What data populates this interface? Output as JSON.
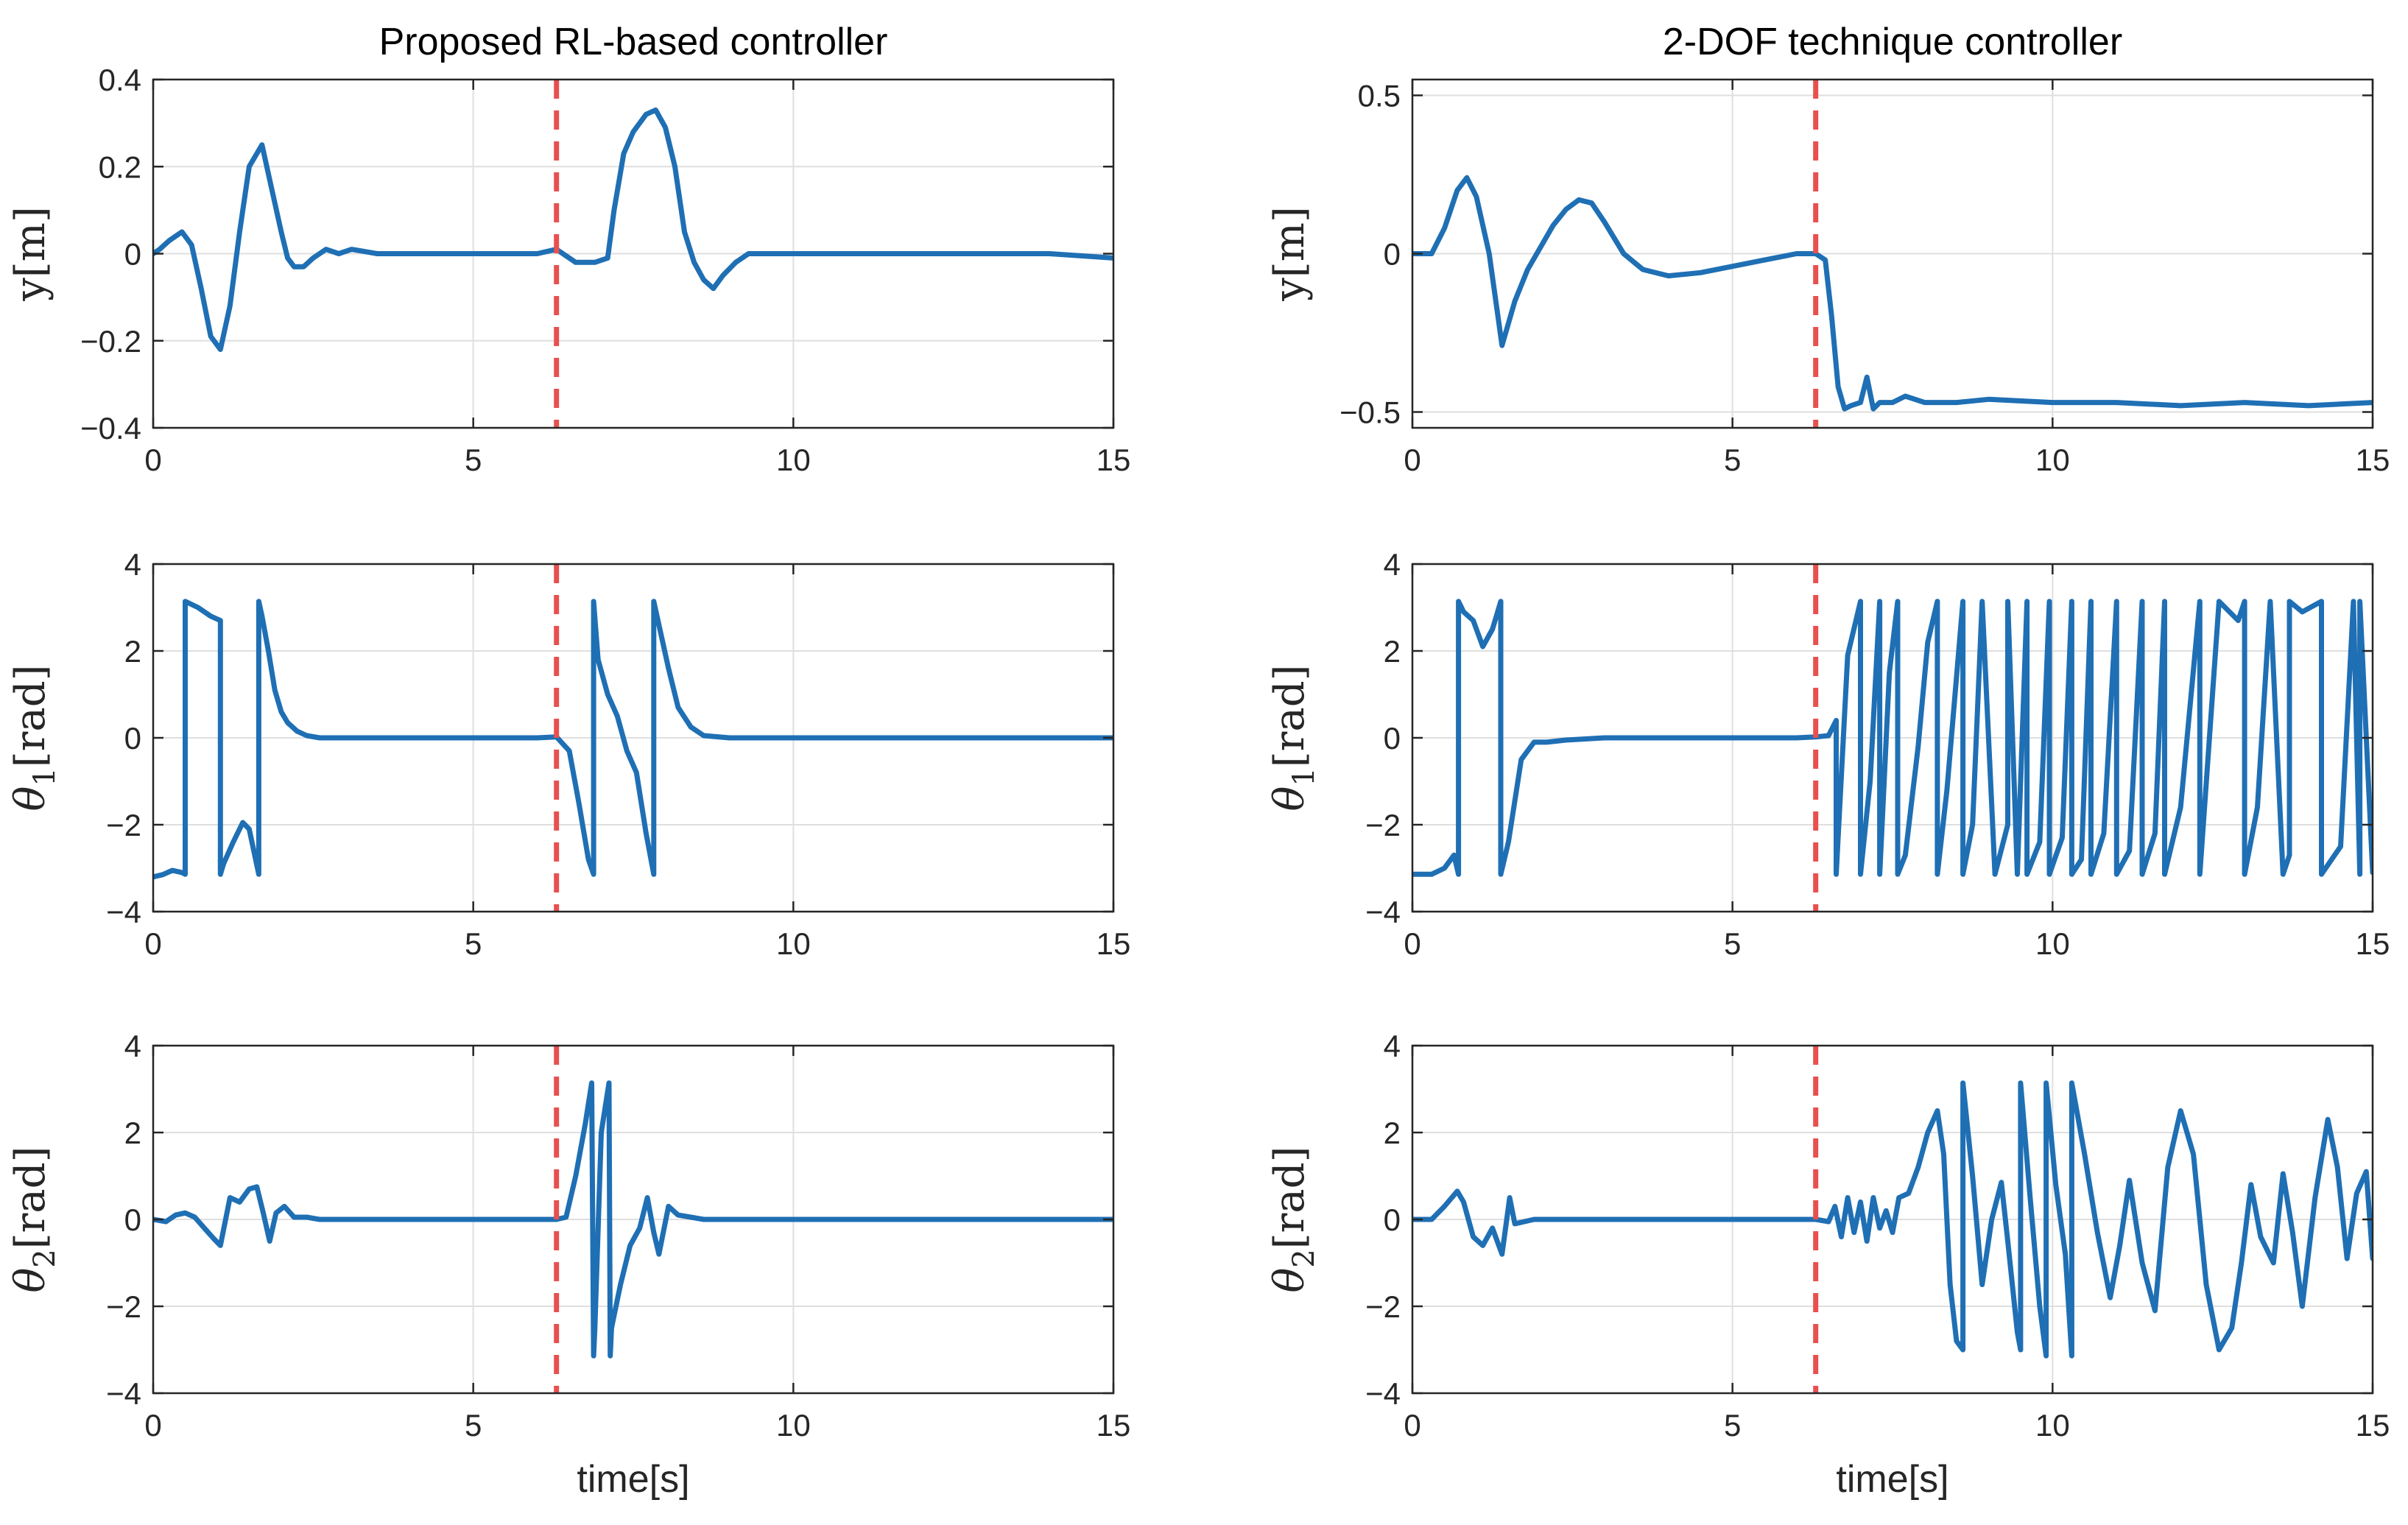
{
  "colors": {
    "series": "#1f6fb4",
    "marker": "#e8504f",
    "grid": "#dfdfdf",
    "axis": "#262626"
  },
  "chart_data": [
    {
      "type": "line",
      "id": "rl-y",
      "column": 0,
      "row": 0,
      "title": "Proposed RL-based controller",
      "xlabel": "",
      "ylabel": "y[m]",
      "ylabel_main": "y",
      "ylabel_sub": "",
      "ylabel_unit": "[m]",
      "xlim": [
        0,
        15
      ],
      "ylim": [
        -0.4,
        0.4
      ],
      "xticks": [
        0,
        5,
        10,
        15
      ],
      "xtick_labels": [
        "0",
        "5",
        "10",
        "15"
      ],
      "yticks": [
        0.4,
        0.2,
        0,
        -0.2,
        -0.4
      ],
      "ytick_labels": [
        "0.4",
        "0.2",
        "0",
        "−0.2",
        "−0.4"
      ],
      "grid": true,
      "vline_x": 6.3,
      "vline_style": "dashed red",
      "series": [
        {
          "name": "y",
          "x": [
            0,
            0.1,
            0.25,
            0.45,
            0.6,
            0.75,
            0.9,
            1.05,
            1.2,
            1.35,
            1.5,
            1.7,
            1.85,
            2.0,
            2.1,
            2.2,
            2.35,
            2.5,
            2.7,
            2.9,
            3.1,
            3.5,
            4.0,
            4.5,
            5.0,
            5.5,
            6.0,
            6.3,
            6.6,
            6.9,
            7.1,
            7.2,
            7.35,
            7.5,
            7.7,
            7.85,
            8.0,
            8.15,
            8.3,
            8.45,
            8.6,
            8.75,
            8.9,
            9.1,
            9.3,
            9.6,
            10.0,
            11.0,
            12.0,
            13.0,
            14.0,
            15.0
          ],
          "values": [
            0,
            0.01,
            0.03,
            0.05,
            0.02,
            -0.08,
            -0.19,
            -0.22,
            -0.12,
            0.05,
            0.2,
            0.25,
            0.15,
            0.05,
            -0.01,
            -0.03,
            -0.03,
            -0.01,
            0.01,
            0.0,
            0.01,
            0.0,
            0.0,
            0.0,
            0.0,
            0.0,
            0.0,
            0.01,
            -0.02,
            -0.02,
            -0.01,
            0.1,
            0.23,
            0.28,
            0.32,
            0.33,
            0.29,
            0.2,
            0.05,
            -0.02,
            -0.06,
            -0.08,
            -0.05,
            -0.02,
            0.0,
            0.0,
            0.0,
            0.0,
            0.0,
            0.0,
            0.0,
            -0.01
          ]
        }
      ]
    },
    {
      "type": "line",
      "id": "dof-y",
      "column": 1,
      "row": 0,
      "title": "2-DOF technique controller",
      "xlabel": "",
      "ylabel": "y[m]",
      "ylabel_main": "y",
      "ylabel_sub": "",
      "ylabel_unit": "[m]",
      "xlim": [
        0,
        15
      ],
      "ylim": [
        -0.55,
        0.55
      ],
      "xticks": [
        0,
        5,
        10,
        15
      ],
      "xtick_labels": [
        "0",
        "5",
        "10",
        "15"
      ],
      "yticks": [
        0.5,
        0,
        -0.5
      ],
      "ytick_labels": [
        "0.5",
        "0",
        "−0.5"
      ],
      "grid": true,
      "vline_x": 6.3,
      "vline_style": "dashed red",
      "series": [
        {
          "name": "y",
          "x": [
            0,
            0.3,
            0.5,
            0.7,
            0.85,
            1.0,
            1.2,
            1.4,
            1.6,
            1.8,
            2.0,
            2.2,
            2.4,
            2.6,
            2.8,
            3.0,
            3.3,
            3.6,
            4.0,
            4.5,
            5.0,
            5.5,
            6.0,
            6.3,
            6.45,
            6.55,
            6.65,
            6.75,
            6.85,
            7.0,
            7.1,
            7.2,
            7.3,
            7.5,
            7.7,
            8.0,
            8.5,
            9.0,
            10.0,
            11.0,
            12.0,
            13.0,
            14.0,
            15.0
          ],
          "values": [
            0,
            0.0,
            0.08,
            0.2,
            0.24,
            0.18,
            0.0,
            -0.29,
            -0.15,
            -0.05,
            0.02,
            0.09,
            0.14,
            0.17,
            0.16,
            0.1,
            0.0,
            -0.05,
            -0.07,
            -0.06,
            -0.04,
            -0.02,
            0.0,
            0.0,
            -0.02,
            -0.2,
            -0.42,
            -0.49,
            -0.48,
            -0.47,
            -0.39,
            -0.49,
            -0.47,
            -0.47,
            -0.45,
            -0.47,
            -0.47,
            -0.46,
            -0.47,
            -0.47,
            -0.48,
            -0.47,
            -0.48,
            -0.47
          ]
        }
      ]
    },
    {
      "type": "line",
      "id": "rl-theta1",
      "column": 0,
      "row": 1,
      "title": "",
      "xlabel": "",
      "ylabel": "θ1[rad]",
      "ylabel_main": "θ",
      "ylabel_sub": "1",
      "ylabel_unit": "[rad]",
      "xlim": [
        0,
        15
      ],
      "ylim": [
        -4,
        4
      ],
      "xticks": [
        0,
        5,
        10,
        15
      ],
      "xtick_labels": [
        "0",
        "5",
        "10",
        "15"
      ],
      "yticks": [
        4,
        2,
        0,
        -2,
        -4
      ],
      "ytick_labels": [
        "4",
        "2",
        "0",
        "−2",
        "−4"
      ],
      "grid": true,
      "vline_x": 6.3,
      "vline_style": "dashed red",
      "series": [
        {
          "name": "theta1",
          "x": [
            0,
            0.15,
            0.3,
            0.45,
            0.5,
            0.5,
            0.7,
            0.9,
            1.05,
            1.05,
            1.1,
            1.25,
            1.4,
            1.5,
            1.65,
            1.65,
            1.7,
            1.8,
            1.9,
            2.0,
            2.1,
            2.25,
            2.4,
            2.6,
            3.0,
            4.0,
            5.0,
            6.0,
            6.3,
            6.5,
            6.65,
            6.8,
            6.88,
            6.88,
            6.95,
            7.1,
            7.25,
            7.4,
            7.55,
            7.7,
            7.82,
            7.82,
            7.9,
            8.05,
            8.2,
            8.4,
            8.6,
            9.0,
            10.0,
            11.0,
            12.0,
            13.0,
            14.0,
            15.0
          ],
          "values": [
            -3.2,
            -3.15,
            -3.05,
            -3.1,
            -3.14,
            3.14,
            3.0,
            2.8,
            2.7,
            -3.14,
            -2.9,
            -2.4,
            -1.95,
            -2.1,
            -3.14,
            3.14,
            2.8,
            2.0,
            1.1,
            0.6,
            0.35,
            0.15,
            0.05,
            0.0,
            0.0,
            0.0,
            0.0,
            0.0,
            0.02,
            -0.3,
            -1.5,
            -2.8,
            -3.14,
            3.14,
            1.8,
            1.0,
            0.5,
            -0.3,
            -0.8,
            -2.2,
            -3.14,
            3.14,
            2.6,
            1.6,
            0.7,
            0.25,
            0.05,
            0.0,
            0.0,
            0.0,
            0.0,
            0.0,
            0.0,
            0.0
          ]
        }
      ]
    },
    {
      "type": "line",
      "id": "dof-theta1",
      "column": 1,
      "row": 1,
      "title": "",
      "xlabel": "",
      "ylabel": "θ1[rad]",
      "ylabel_main": "θ",
      "ylabel_sub": "1",
      "ylabel_unit": "[rad]",
      "xlim": [
        0,
        15
      ],
      "ylim": [
        -4,
        4
      ],
      "xticks": [
        0,
        5,
        10,
        15
      ],
      "xtick_labels": [
        "0",
        "5",
        "10",
        "15"
      ],
      "yticks": [
        4,
        2,
        0,
        -2,
        -4
      ],
      "ytick_labels": [
        "4",
        "2",
        "0",
        "−2",
        "−4"
      ],
      "grid": true,
      "vline_x": 6.3,
      "vline_style": "dashed red",
      "series": [
        {
          "name": "theta1",
          "x": [
            0,
            0.3,
            0.5,
            0.65,
            0.72,
            0.72,
            0.8,
            0.95,
            1.1,
            1.25,
            1.38,
            1.38,
            1.5,
            1.7,
            1.9,
            2.1,
            2.4,
            3.0,
            4.0,
            5.0,
            6.0,
            6.3,
            6.5,
            6.62,
            6.62,
            6.8,
            7.0,
            7.0,
            7.15,
            7.3,
            7.3,
            7.45,
            7.58,
            7.58,
            7.7,
            7.9,
            8.05,
            8.2,
            8.2,
            8.35,
            8.6,
            8.6,
            8.75,
            8.9,
            9.1,
            9.3,
            9.3,
            9.45,
            9.6,
            9.6,
            9.8,
            9.95,
            9.95,
            10.15,
            10.3,
            10.3,
            10.45,
            10.6,
            10.6,
            10.8,
            11.0,
            11.0,
            11.2,
            11.4,
            11.4,
            11.6,
            11.75,
            11.75,
            12.0,
            12.3,
            12.3,
            12.6,
            12.9,
            13.0,
            13.0,
            13.2,
            13.4,
            13.6,
            13.7,
            13.7,
            13.9,
            14.2,
            14.2,
            14.5,
            14.7,
            14.8,
            14.8,
            15.0
          ],
          "values": [
            -3.14,
            -3.14,
            -3.0,
            -2.7,
            -3.14,
            3.14,
            2.9,
            2.7,
            2.1,
            2.5,
            3.14,
            -3.14,
            -2.4,
            -0.5,
            -0.1,
            -0.1,
            -0.05,
            0.0,
            0.0,
            0.0,
            0.0,
            0.02,
            0.05,
            0.4,
            -3.14,
            1.9,
            3.14,
            -3.14,
            -1.0,
            3.14,
            -3.14,
            1.5,
            3.14,
            -3.14,
            -2.7,
            -0.2,
            2.2,
            3.14,
            -3.14,
            -1.2,
            3.14,
            -3.14,
            -2.0,
            3.14,
            -3.14,
            -2.0,
            3.14,
            -3.14,
            3.14,
            -3.14,
            -2.4,
            3.14,
            -3.14,
            -2.3,
            3.14,
            -3.14,
            -2.8,
            3.14,
            -3.14,
            -2.2,
            3.14,
            -3.14,
            -2.6,
            3.14,
            -3.14,
            -2.2,
            3.14,
            -3.14,
            -1.6,
            3.14,
            -3.14,
            3.14,
            2.7,
            3.14,
            -3.14,
            -1.6,
            3.14,
            -3.14,
            -2.7,
            3.14,
            2.9,
            3.14,
            -3.14,
            -2.5,
            3.14,
            -3.14,
            3.14,
            -3.1
          ]
        }
      ]
    },
    {
      "type": "line",
      "id": "rl-theta2",
      "column": 0,
      "row": 2,
      "title": "",
      "xlabel": "time[s]",
      "ylabel": "θ2[rad]",
      "ylabel_main": "θ",
      "ylabel_sub": "2",
      "ylabel_unit": "[rad]",
      "xlim": [
        0,
        15
      ],
      "ylim": [
        -4,
        4
      ],
      "xticks": [
        0,
        5,
        10,
        15
      ],
      "xtick_labels": [
        "0",
        "5",
        "10",
        "15"
      ],
      "yticks": [
        4,
        2,
        0,
        -2,
        -4
      ],
      "ytick_labels": [
        "4",
        "2",
        "0",
        "−2",
        "−4"
      ],
      "grid": true,
      "vline_x": 6.3,
      "vline_style": "dashed red",
      "series": [
        {
          "name": "theta2",
          "x": [
            0,
            0.2,
            0.35,
            0.5,
            0.65,
            0.8,
            0.95,
            1.05,
            1.2,
            1.35,
            1.5,
            1.62,
            1.72,
            1.82,
            1.92,
            2.05,
            2.2,
            2.4,
            2.6,
            3.0,
            4.0,
            5.0,
            6.0,
            6.3,
            6.45,
            6.6,
            6.75,
            6.85,
            6.88,
            6.9,
            7.0,
            7.12,
            7.14,
            7.16,
            7.3,
            7.45,
            7.6,
            7.72,
            7.82,
            7.9,
            8.05,
            8.2,
            8.4,
            8.6,
            9.0,
            10.0,
            11.0,
            12.0,
            13.0,
            14.0,
            15.0
          ],
          "values": [
            0,
            -0.05,
            0.1,
            0.15,
            0.05,
            -0.2,
            -0.45,
            -0.6,
            0.5,
            0.4,
            0.7,
            0.75,
            0.15,
            -0.5,
            0.15,
            0.3,
            0.05,
            0.05,
            0.0,
            0.0,
            0.0,
            0.0,
            0.0,
            0.0,
            0.05,
            1.0,
            2.2,
            3.14,
            -3.14,
            -2.5,
            2.0,
            3.14,
            -3.14,
            -2.5,
            -1.5,
            -0.6,
            -0.2,
            0.5,
            -0.3,
            -0.8,
            0.3,
            0.1,
            0.05,
            0.0,
            0.0,
            0.0,
            0.0,
            0.0,
            0.0,
            0.0,
            0.0
          ]
        }
      ]
    },
    {
      "type": "line",
      "id": "dof-theta2",
      "column": 1,
      "row": 2,
      "title": "",
      "xlabel": "time[s]",
      "ylabel": "θ2[rad]",
      "ylabel_main": "θ",
      "ylabel_sub": "2",
      "ylabel_unit": "[rad]",
      "xlim": [
        0,
        15
      ],
      "ylim": [
        -4,
        4
      ],
      "xticks": [
        0,
        5,
        10,
        15
      ],
      "xtick_labels": [
        "0",
        "5",
        "10",
        "15"
      ],
      "yticks": [
        4,
        2,
        0,
        -2,
        -4
      ],
      "ytick_labels": [
        "4",
        "2",
        "0",
        "−2",
        "−4"
      ],
      "grid": true,
      "vline_x": 6.3,
      "vline_style": "dashed red",
      "series": [
        {
          "name": "theta2",
          "x": [
            0,
            0.3,
            0.5,
            0.7,
            0.8,
            0.95,
            1.1,
            1.25,
            1.4,
            1.52,
            1.6,
            1.75,
            1.9,
            2.2,
            2.6,
            3.0,
            4.0,
            5.0,
            6.0,
            6.3,
            6.5,
            6.6,
            6.7,
            6.8,
            6.9,
            7.0,
            7.1,
            7.2,
            7.3,
            7.4,
            7.5,
            7.6,
            7.75,
            7.9,
            8.05,
            8.2,
            8.3,
            8.4,
            8.5,
            8.6,
            8.6,
            8.75,
            8.9,
            9.05,
            9.2,
            9.3,
            9.45,
            9.5,
            9.5,
            9.65,
            9.8,
            9.9,
            9.9,
            10.05,
            10.2,
            10.3,
            10.3,
            10.5,
            10.7,
            10.9,
            11.05,
            11.2,
            11.4,
            11.6,
            11.8,
            12.0,
            12.2,
            12.4,
            12.6,
            12.8,
            12.95,
            13.1,
            13.25,
            13.45,
            13.6,
            13.75,
            13.9,
            14.1,
            14.3,
            14.45,
            14.6,
            14.75,
            14.9,
            15.0
          ],
          "values": [
            0,
            0.0,
            0.3,
            0.65,
            0.4,
            -0.4,
            -0.6,
            -0.2,
            -0.8,
            0.5,
            -0.1,
            -0.05,
            0.0,
            0.0,
            0.0,
            0.0,
            0.0,
            0.0,
            0.0,
            0.0,
            -0.05,
            0.3,
            -0.4,
            0.5,
            -0.3,
            0.4,
            -0.5,
            0.5,
            -0.2,
            0.2,
            -0.3,
            0.5,
            0.6,
            1.2,
            2.0,
            2.5,
            1.5,
            -1.5,
            -2.8,
            -3.0,
            3.14,
            1.0,
            -1.5,
            0.0,
            0.85,
            -0.5,
            -2.6,
            -3.0,
            3.14,
            0.5,
            -2.0,
            -3.14,
            3.14,
            0.8,
            -0.8,
            -3.14,
            3.14,
            1.5,
            -0.3,
            -1.8,
            -0.6,
            0.9,
            -1.0,
            -2.1,
            1.2,
            2.5,
            1.5,
            -1.5,
            -3.0,
            -2.5,
            -1.0,
            0.8,
            -0.4,
            -1.0,
            1.05,
            -0.3,
            -2.0,
            0.5,
            2.3,
            1.2,
            -0.9,
            0.6,
            1.1,
            -0.9
          ]
        }
      ]
    }
  ]
}
